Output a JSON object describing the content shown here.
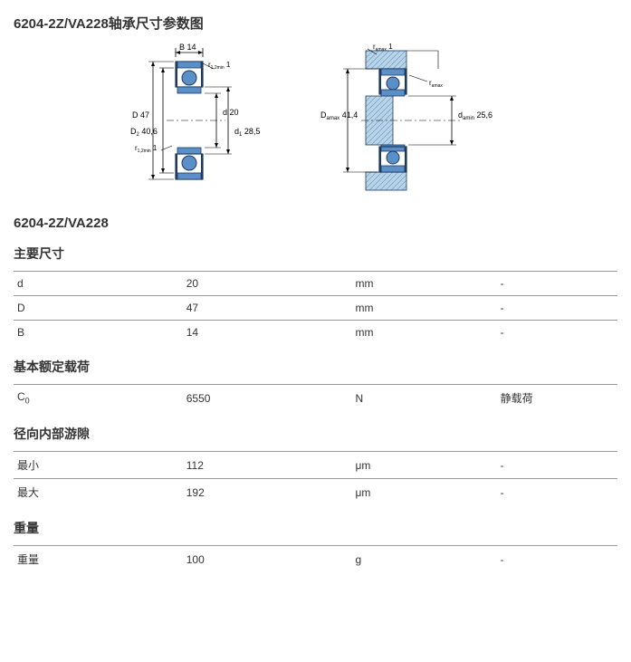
{
  "page_title": "6204-2Z/VA228轴承尺寸参数图",
  "product_name": "6204-2Z/VA228",
  "diagram": {
    "left": {
      "B_label": "B",
      "B_val": "14",
      "D_label": "D",
      "D_val": "47",
      "D2_label": "D",
      "D2_sub": "2",
      "D2_val": "40,6",
      "d_label": "d",
      "d_val": "20",
      "d1_label": "d",
      "d1_sub": "1",
      "d1_val": "28,5",
      "r_label": "r",
      "r_sub": "1,2min",
      "r_val": "1",
      "r2_label": "r",
      "r2_sub": "1,2min",
      "r2_val": "1"
    },
    "right": {
      "ra_label": "r",
      "ra_sub": "amax",
      "ra_val": "1",
      "Da_label": "D",
      "Da_sub": "amax",
      "Da_val": "41,4",
      "ra2_label": "r",
      "ra2_sub": "amax",
      "da_label": "d",
      "da_sub": "amin",
      "da_val": "25,6"
    }
  },
  "sections": [
    {
      "title": "主要尺寸",
      "rows": [
        {
          "p": "d",
          "v": "20",
          "u": "mm",
          "n": "-"
        },
        {
          "p": "D",
          "v": "47",
          "u": "mm",
          "n": "-"
        },
        {
          "p": "B",
          "v": "14",
          "u": "mm",
          "n": "-"
        }
      ]
    },
    {
      "title": "基本额定载荷",
      "rows": [
        {
          "p": "C",
          "sub": "0",
          "v": "6550",
          "u": "N",
          "n": "静载荷"
        }
      ]
    },
    {
      "title": "径向内部游隙",
      "rows": [
        {
          "p": "最小",
          "v": "112",
          "u": "μm",
          "n": "-"
        },
        {
          "p": "最大",
          "v": "192",
          "u": "μm",
          "n": "-"
        }
      ]
    },
    {
      "title": "重量",
      "rows": [
        {
          "p": "重量",
          "v": "100",
          "u": "g",
          "n": "-"
        }
      ]
    }
  ],
  "colors": {
    "bearing_fill": "#5a8fc7",
    "bearing_stroke": "#1e3a5f",
    "hatch_bg": "#b8d4e8"
  }
}
